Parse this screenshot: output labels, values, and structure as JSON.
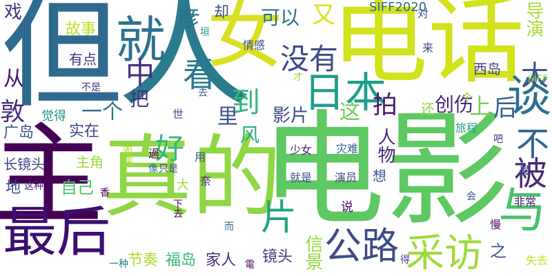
{
  "word_cloud": {
    "background": "#ffffff",
    "words": [
      {
        "text": "但",
        "color": "#2f6b8e"
      },
      {
        "text": "人",
        "color": "#2a7b8e"
      },
      {
        "text": "女",
        "color": "#d9e021"
      },
      {
        "text": "电话",
        "color": "#d2e21b"
      },
      {
        "text": "电影",
        "color": "#5ec962"
      },
      {
        "text": "真的",
        "color": "#8fd744"
      },
      {
        "text": "主",
        "color": "#440154"
      },
      {
        "text": "最后",
        "color": "#3b0f70"
      },
      {
        "text": "就",
        "color": "#2c728e"
      },
      {
        "text": "中",
        "color": "#472d7b"
      },
      {
        "text": "看",
        "color": "#2a788e"
      },
      {
        "text": "日本",
        "color": "#1f9e89"
      },
      {
        "text": "好",
        "color": "#35b779"
      },
      {
        "text": "与",
        "color": "#4ac16d"
      },
      {
        "text": "采访",
        "color": "#9fda3a"
      },
      {
        "text": "公路",
        "color": "#3e4a89"
      },
      {
        "text": "片",
        "color": "#20a486"
      },
      {
        "text": "没有",
        "color": "#3e4989"
      },
      {
        "text": "谈",
        "color": "#2d718e"
      },
      {
        "text": "不",
        "color": "#32658e"
      },
      {
        "text": "被",
        "color": "#472878"
      },
      {
        "text": "太",
        "color": "#3b528b"
      },
      {
        "text": "又",
        "color": "#dde318"
      },
      {
        "text": "可以",
        "color": "#2e6e8e"
      },
      {
        "text": "彦",
        "color": "#2d708e"
      },
      {
        "text": "戏",
        "color": "#46337e"
      },
      {
        "text": "却",
        "color": "#3b528b"
      },
      {
        "text": "SIFF2020",
        "color": "#31688e"
      },
      {
        "text": "对",
        "color": "#3a548c"
      },
      {
        "text": "导演",
        "color": "#a8db34"
      },
      {
        "text": "故事",
        "color": "#bddf26"
      },
      {
        "text": "有点",
        "color": "#46317e"
      },
      {
        "text": "情感",
        "color": "#3f4889"
      },
      {
        "text": "来",
        "color": "#404387"
      },
      {
        "text": "西岛",
        "color": "#414487"
      },
      {
        "text": "从",
        "color": "#481769"
      },
      {
        "text": "敦",
        "color": "#472c7a"
      },
      {
        "text": "把",
        "color": "#46317e"
      },
      {
        "text": "一个",
        "color": "#2c738e"
      },
      {
        "text": "到",
        "color": "#35b779"
      },
      {
        "text": "里",
        "color": "#3b528b"
      },
      {
        "text": "风",
        "color": "#27ad81"
      },
      {
        "text": "这",
        "color": "#6ccd5a"
      },
      {
        "text": "拍",
        "color": "#481a6c"
      },
      {
        "text": "影片",
        "color": "#3e4a89"
      },
      {
        "text": "还",
        "color": "#95d840"
      },
      {
        "text": "创伤",
        "color": "#482576"
      },
      {
        "text": "上",
        "color": "#73d056"
      },
      {
        "text": "后",
        "color": "#355f8d"
      },
      {
        "text": "广岛",
        "color": "#3b528b"
      },
      {
        "text": "觉得",
        "color": "#1f968b"
      },
      {
        "text": "实在",
        "color": "#414487"
      },
      {
        "text": "不是",
        "color": "#453781"
      },
      {
        "text": "才",
        "color": "#98d83e"
      },
      {
        "text": "SIFF",
        "color": "#8ed645"
      },
      {
        "text": "去",
        "color": "#355e8d"
      },
      {
        "text": "旅程",
        "color": "#20a386"
      },
      {
        "text": "人物",
        "color": "#482878"
      },
      {
        "text": "长镜头",
        "color": "#404588"
      },
      {
        "text": "主角",
        "color": "#9dd93b"
      },
      {
        "text": "表演",
        "color": "#b5de2b"
      },
      {
        "text": "世",
        "color": "#3b528b"
      },
      {
        "text": "過",
        "color": "#440154"
      },
      {
        "text": "用",
        "color": "#3e4989"
      },
      {
        "text": "少女",
        "color": "#482071"
      },
      {
        "text": "灾难",
        "color": "#33638d"
      },
      {
        "text": "个",
        "color": "#8fd744"
      },
      {
        "text": "吧",
        "color": "#472c7a"
      },
      {
        "text": "只是",
        "color": "#414487"
      },
      {
        "text": "像",
        "color": "#2e6f8e"
      },
      {
        "text": "奈",
        "color": "#481f70"
      },
      {
        "text": "最",
        "color": "#404688"
      },
      {
        "text": "就是",
        "color": "#3d4e8a"
      },
      {
        "text": "演员",
        "color": "#414487"
      },
      {
        "text": "想",
        "color": "#3b528b"
      },
      {
        "text": "自己",
        "color": "#4ec36b"
      },
      {
        "text": "地",
        "color": "#3f4889"
      },
      {
        "text": "这种",
        "color": "#482173"
      },
      {
        "text": "香",
        "color": "#440154"
      },
      {
        "text": "大",
        "color": "#a5db36"
      },
      {
        "text": "下去",
        "color": "#450559"
      },
      {
        "text": "会",
        "color": "#3a548c"
      },
      {
        "text": "非常",
        "color": "#481b6d"
      },
      {
        "text": "说",
        "color": "#471063"
      },
      {
        "text": "慢",
        "color": "#470d60"
      },
      {
        "text": "而",
        "color": "#2e6e8e"
      },
      {
        "text": "之",
        "color": "#3b528b"
      },
      {
        "text": "一种",
        "color": "#2a788e"
      },
      {
        "text": "节奏",
        "color": "#addc30"
      },
      {
        "text": "福岛",
        "color": "#35b779"
      },
      {
        "text": "家人",
        "color": "#472f7d"
      },
      {
        "text": "镜头",
        "color": "#433e85"
      },
      {
        "text": "電",
        "color": "#471365"
      },
      {
        "text": "得",
        "color": "#453882"
      },
      {
        "text": "失去",
        "color": "#c8e020"
      },
      {
        "text": "垣",
        "color": "#1f978b"
      },
      {
        "text": "信景",
        "color": "#90d743"
      }
    ]
  }
}
